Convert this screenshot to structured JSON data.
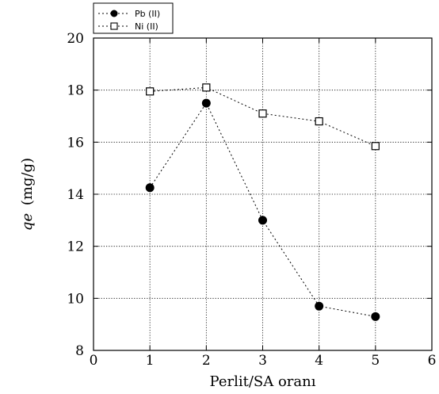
{
  "chart_data": {
    "type": "line",
    "xlabel": "Perlit/SA oranı",
    "ylabel_italic": "qe",
    "ylabel_unit": "(mg/g)",
    "xlim": [
      0,
      6
    ],
    "ylim": [
      8,
      20
    ],
    "xticks": [
      0,
      1,
      2,
      3,
      4,
      5,
      6
    ],
    "yticks": [
      8,
      10,
      12,
      14,
      16,
      18,
      20
    ],
    "grid": true,
    "legend_position": "top-left",
    "series": [
      {
        "name": "Pb (II)",
        "marker": "filled-circle",
        "x": [
          1,
          2,
          3,
          4,
          5
        ],
        "y": [
          14.25,
          17.5,
          13.0,
          9.7,
          9.3
        ]
      },
      {
        "name": "Ni (II)",
        "marker": "open-square",
        "x": [
          1,
          2,
          3,
          4,
          5
        ],
        "y": [
          17.95,
          18.1,
          17.1,
          16.8,
          15.85
        ]
      }
    ]
  }
}
